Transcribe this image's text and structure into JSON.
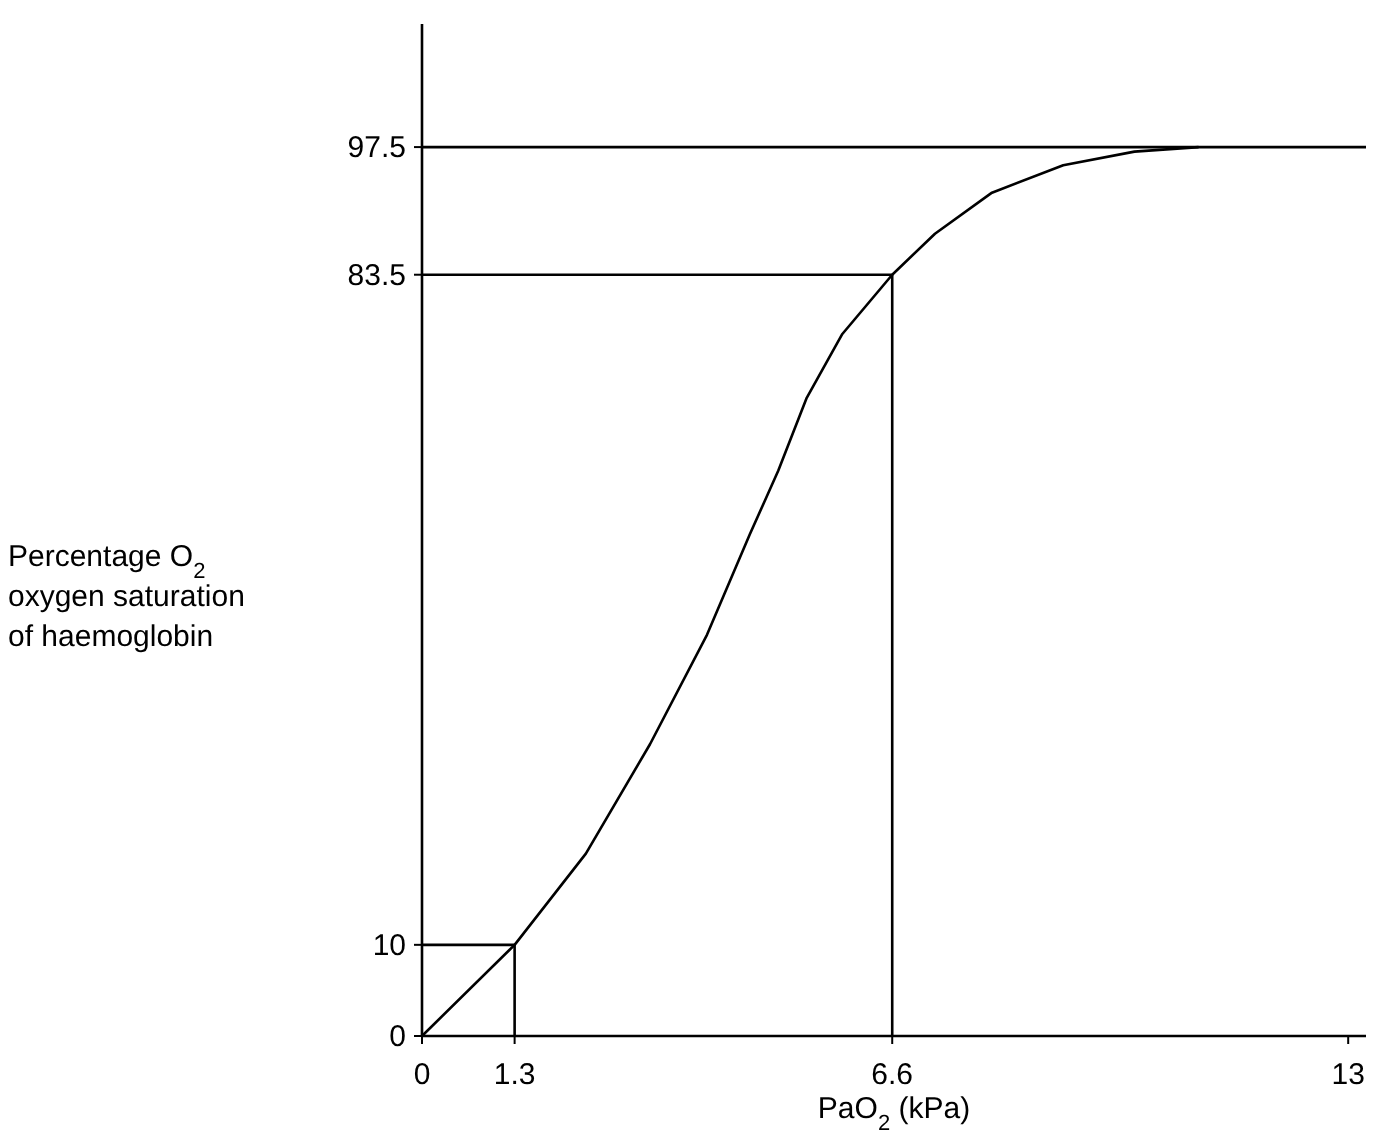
{
  "chart_data": {
    "type": "line",
    "xlabel": "PaO$_{2}$ (kPa)",
    "ylabel": "Percentage O$_{2}$\noxygen  saturation\nof haemoglobin",
    "xlim": [
      0,
      13.25
    ],
    "ylim": [
      0,
      111
    ],
    "xticks": [
      0,
      1.3,
      6.6,
      13
    ],
    "yticks": [
      0,
      10,
      83.5,
      97.5
    ],
    "grid": false,
    "marker": "none",
    "line_style": "solid",
    "ref_lines": [
      {
        "axis": "y",
        "value": 97.5,
        "color": "#000000"
      }
    ],
    "series": [
      {
        "color": "#000000",
        "x": [
          0,
          1.3,
          2.3,
          3.2,
          4.0,
          4.6,
          5.0,
          5.4,
          5.9,
          6.6,
          7.2,
          8,
          9,
          10,
          10.9
        ],
        "values": [
          0,
          10,
          20,
          32,
          44,
          55,
          62,
          70,
          77,
          83.5,
          88,
          92.5,
          95.5,
          97,
          97.5
        ]
      },
      {
        "color": "#000000",
        "x": [
          0,
          6.6,
          6.6
        ],
        "values": [
          83.5,
          83.5,
          0
        ]
      },
      {
        "color": "#000000",
        "x": [
          0,
          1.3,
          1.3
        ],
        "values": [
          10,
          10,
          0
        ]
      }
    ]
  }
}
